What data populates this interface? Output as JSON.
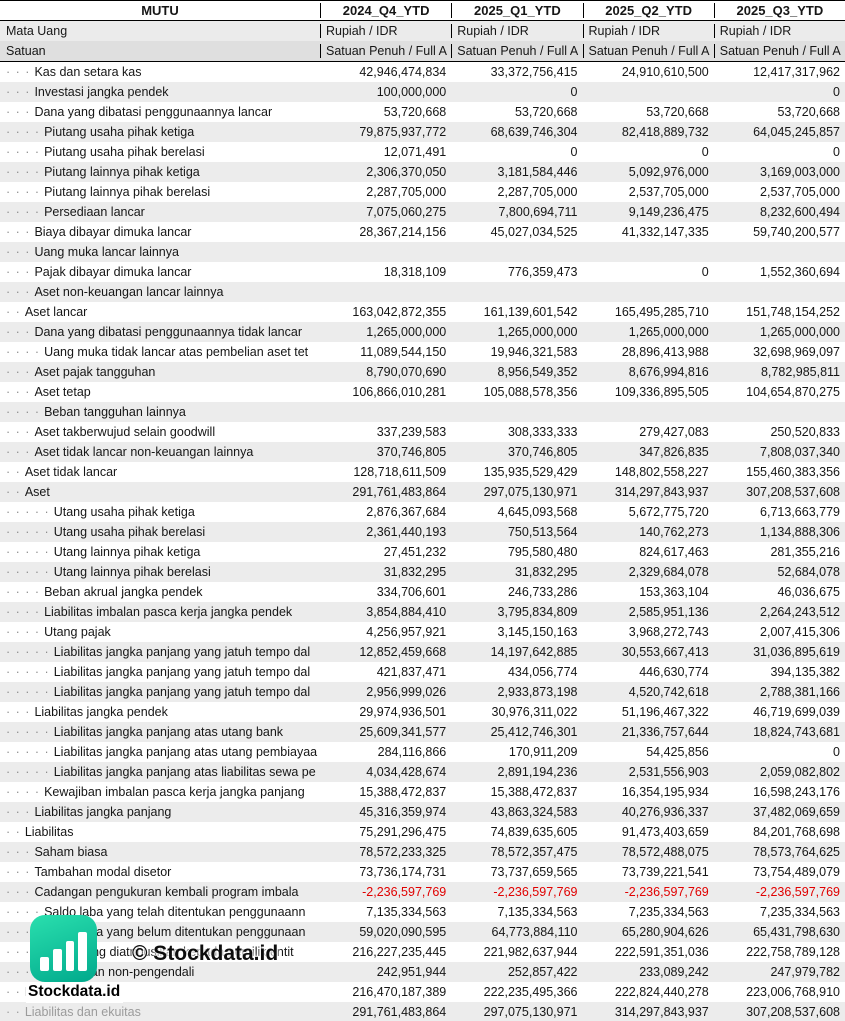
{
  "header": {
    "ticker": "MUTU",
    "periods": [
      "2024_Q4_YTD",
      "2025_Q1_YTD",
      "2025_Q2_YTD",
      "2025_Q3_YTD"
    ],
    "currency_label": "Mata Uang",
    "currency_values": [
      "Rupiah / IDR",
      "Rupiah / IDR",
      "Rupiah / IDR",
      "Rupiah / IDR"
    ],
    "unit_label": "Satuan",
    "unit_values": [
      "Satuan Penuh / Full A",
      "Satuan Penuh / Full A",
      "Satuan Penuh / Full A",
      "Satuan Penuh / Full A"
    ]
  },
  "rows": [
    {
      "dots": "· · ·",
      "label": "Kas dan setara kas",
      "values": [
        "42,946,474,834",
        "33,372,756,415",
        "24,910,610,500",
        "12,417,317,962"
      ]
    },
    {
      "dots": "· · ·",
      "label": "Investasi jangka pendek",
      "values": [
        "100,000,000",
        "0",
        "",
        "0"
      ]
    },
    {
      "dots": "· · ·",
      "label": "Dana yang dibatasi penggunaannya lancar",
      "values": [
        "53,720,668",
        "53,720,668",
        "53,720,668",
        "53,720,668"
      ]
    },
    {
      "dots": "· · · ·",
      "label": "Piutang usaha pihak ketiga",
      "values": [
        "79,875,937,772",
        "68,639,746,304",
        "82,418,889,732",
        "64,045,245,857"
      ]
    },
    {
      "dots": "· · · ·",
      "label": "Piutang usaha pihak berelasi",
      "values": [
        "12,071,491",
        "0",
        "0",
        "0"
      ]
    },
    {
      "dots": "· · · ·",
      "label": "Piutang lainnya pihak ketiga",
      "values": [
        "2,306,370,050",
        "3,181,584,446",
        "5,092,976,000",
        "3,169,003,000"
      ]
    },
    {
      "dots": "· · · ·",
      "label": "Piutang lainnya pihak berelasi",
      "values": [
        "2,287,705,000",
        "2,287,705,000",
        "2,537,705,000",
        "2,537,705,000"
      ]
    },
    {
      "dots": "· · · ·",
      "label": "Persediaan lancar",
      "values": [
        "7,075,060,275",
        "7,800,694,711",
        "9,149,236,475",
        "8,232,600,494"
      ]
    },
    {
      "dots": "· · ·",
      "label": "Biaya dibayar dimuka lancar",
      "values": [
        "28,367,214,156",
        "45,027,034,525",
        "41,332,147,335",
        "59,740,200,577"
      ]
    },
    {
      "dots": "· · ·",
      "label": "Uang muka lancar lainnya",
      "values": [
        "",
        "",
        "",
        ""
      ]
    },
    {
      "dots": "· · ·",
      "label": "Pajak dibayar dimuka lancar",
      "values": [
        "18,318,109",
        "776,359,473",
        "0",
        "1,552,360,694"
      ]
    },
    {
      "dots": "· · ·",
      "label": "Aset non-keuangan lancar lainnya",
      "values": [
        "",
        "",
        "",
        ""
      ]
    },
    {
      "dots": "· ·",
      "label": "Aset lancar",
      "values": [
        "163,042,872,355",
        "161,139,601,542",
        "165,495,285,710",
        "151,748,154,252"
      ]
    },
    {
      "dots": "· · ·",
      "label": "Dana yang dibatasi penggunaannya tidak lancar",
      "values": [
        "1,265,000,000",
        "1,265,000,000",
        "1,265,000,000",
        "1,265,000,000"
      ]
    },
    {
      "dots": "· · · ·",
      "label": "Uang muka tidak lancar atas pembelian aset tet",
      "values": [
        "11,089,544,150",
        "19,946,321,583",
        "28,896,413,988",
        "32,698,969,097"
      ]
    },
    {
      "dots": "· · ·",
      "label": "Aset pajak tangguhan",
      "values": [
        "8,790,070,690",
        "8,956,549,352",
        "8,676,994,816",
        "8,782,985,811"
      ]
    },
    {
      "dots": "· · ·",
      "label": "Aset tetap",
      "values": [
        "106,866,010,281",
        "105,088,578,356",
        "109,336,895,505",
        "104,654,870,275"
      ]
    },
    {
      "dots": "· · · ·",
      "label": "Beban tangguhan lainnya",
      "values": [
        "",
        "",
        "",
        ""
      ]
    },
    {
      "dots": "· · ·",
      "label": "Aset takberwujud selain goodwill",
      "values": [
        "337,239,583",
        "308,333,333",
        "279,427,083",
        "250,520,833"
      ]
    },
    {
      "dots": "· · ·",
      "label": "Aset tidak lancar non-keuangan lainnya",
      "values": [
        "370,746,805",
        "370,746,805",
        "347,826,835",
        "7,808,037,340"
      ]
    },
    {
      "dots": "· ·",
      "label": "Aset tidak lancar",
      "values": [
        "128,718,611,509",
        "135,935,529,429",
        "148,802,558,227",
        "155,460,383,356"
      ]
    },
    {
      "dots": "· ·",
      "label": "Aset",
      "values": [
        "291,761,483,864",
        "297,075,130,971",
        "314,297,843,937",
        "307,208,537,608"
      ]
    },
    {
      "dots": "· · · · ·",
      "label": "Utang usaha pihak ketiga",
      "values": [
        "2,876,367,684",
        "4,645,093,568",
        "5,672,775,720",
        "6,713,663,779"
      ]
    },
    {
      "dots": "· · · · ·",
      "label": "Utang usaha pihak berelasi",
      "values": [
        "2,361,440,193",
        "750,513,564",
        "140,762,273",
        "1,134,888,306"
      ]
    },
    {
      "dots": "· · · · ·",
      "label": "Utang lainnya pihak ketiga",
      "values": [
        "27,451,232",
        "795,580,480",
        "824,617,463",
        "281,355,216"
      ]
    },
    {
      "dots": "· · · · ·",
      "label": "Utang lainnya pihak berelasi",
      "values": [
        "31,832,295",
        "31,832,295",
        "2,329,684,078",
        "52,684,078"
      ]
    },
    {
      "dots": "· · · ·",
      "label": "Beban akrual jangka pendek",
      "values": [
        "334,706,601",
        "246,733,286",
        "153,363,104",
        "46,036,675"
      ]
    },
    {
      "dots": "· · · ·",
      "label": "Liabilitas imbalan pasca kerja jangka pendek",
      "values": [
        "3,854,884,410",
        "3,795,834,809",
        "2,585,951,136",
        "2,264,243,512"
      ]
    },
    {
      "dots": "· · · ·",
      "label": "Utang pajak",
      "values": [
        "4,256,957,921",
        "3,145,150,163",
        "3,968,272,743",
        "2,007,415,306"
      ]
    },
    {
      "dots": "· · · · ·",
      "label": "Liabilitas jangka panjang yang jatuh tempo dal",
      "values": [
        "12,852,459,668",
        "14,197,642,885",
        "30,553,667,413",
        "31,036,895,619"
      ]
    },
    {
      "dots": "· · · · ·",
      "label": "Liabilitas jangka panjang yang jatuh tempo dal",
      "values": [
        "421,837,471",
        "434,056,774",
        "446,630,774",
        "394,135,382"
      ]
    },
    {
      "dots": "· · · · ·",
      "label": "Liabilitas jangka panjang yang jatuh tempo dal",
      "values": [
        "2,956,999,026",
        "2,933,873,198",
        "4,520,742,618",
        "2,788,381,166"
      ]
    },
    {
      "dots": "· · ·",
      "label": "Liabilitas jangka pendek",
      "values": [
        "29,974,936,501",
        "30,976,311,022",
        "51,196,467,322",
        "46,719,699,039"
      ]
    },
    {
      "dots": "· · · · ·",
      "label": "Liabilitas jangka panjang atas utang bank",
      "values": [
        "25,609,341,577",
        "25,412,746,301",
        "21,336,757,644",
        "18,824,743,681"
      ]
    },
    {
      "dots": "· · · · ·",
      "label": "Liabilitas jangka panjang atas utang pembiayaa",
      "values": [
        "284,116,866",
        "170,911,209",
        "54,425,856",
        "0"
      ]
    },
    {
      "dots": "· · · · ·",
      "label": "Liabilitas jangka panjang atas liabilitas sewa pe",
      "values": [
        "4,034,428,674",
        "2,891,194,236",
        "2,531,556,903",
        "2,059,082,802"
      ]
    },
    {
      "dots": "· · · ·",
      "label": "Kewajiban imbalan pasca kerja jangka panjang",
      "values": [
        "15,388,472,837",
        "15,388,472,837",
        "16,354,195,934",
        "16,598,243,176"
      ]
    },
    {
      "dots": "· · ·",
      "label": "Liabilitas jangka panjang",
      "values": [
        "45,316,359,974",
        "43,863,324,583",
        "40,276,936,337",
        "37,482,069,659"
      ]
    },
    {
      "dots": "· ·",
      "label": "Liabilitas",
      "values": [
        "75,291,296,475",
        "74,839,635,605",
        "91,473,403,659",
        "84,201,768,698"
      ]
    },
    {
      "dots": "· · ·",
      "label": "Saham biasa",
      "values": [
        "78,572,233,325",
        "78,572,357,475",
        "78,572,488,075",
        "78,573,764,625"
      ]
    },
    {
      "dots": "· · ·",
      "label": "Tambahan modal disetor",
      "values": [
        "73,736,174,731",
        "73,737,659,565",
        "73,739,221,541",
        "73,754,489,079"
      ]
    },
    {
      "dots": "· · ·",
      "label": "Cadangan pengukuran kembali program imbala",
      "values": [
        "-2,236,597,769",
        "-2,236,597,769",
        "-2,236,597,769",
        "-2,236,597,769"
      ]
    },
    {
      "dots": "· · · ·",
      "label": "Saldo laba yang telah ditentukan penggunaann",
      "values": [
        "7,135,334,563",
        "7,135,334,563",
        "7,235,334,563",
        "7,235,334,563"
      ]
    },
    {
      "dots": "· · · ·",
      "label": "Saldo laba yang belum ditentukan penggunaan",
      "values": [
        "59,020,090,595",
        "64,773,884,110",
        "65,280,904,626",
        "65,431,798,630"
      ]
    },
    {
      "dots": "· · ·",
      "label": "Ekuitas yang diatribusikan kepada pemilik entit",
      "values": [
        "216,227,235,445",
        "221,982,637,944",
        "222,591,351,036",
        "222,758,789,128"
      ]
    },
    {
      "dots": "· · ·",
      "label": "Kepentingan non-pengendali",
      "values": [
        "242,951,944",
        "252,857,422",
        "233,089,242",
        "247,979,782"
      ]
    },
    {
      "dots": "· ·",
      "label": "Ekuitas",
      "values": [
        "216,470,187,389",
        "222,235,495,366",
        "222,824,440,278",
        "223,006,768,910"
      ]
    },
    {
      "dots": "· ·",
      "label": "Liabilitas dan ekuitas",
      "values": [
        "291,761,483,864",
        "297,075,130,971",
        "314,297,843,937",
        "307,208,537,608"
      ],
      "muted": true
    }
  ],
  "watermark": {
    "brand": "Stockdata.id",
    "copyright": "© Stockdata.id",
    "icon": "bar-chart-icon",
    "accent_color_start": "#2adfae",
    "accent_color_end": "#00a98c"
  },
  "colors": {
    "negative": "#e00000",
    "alt_row": "#ececec",
    "border": "#000000"
  }
}
